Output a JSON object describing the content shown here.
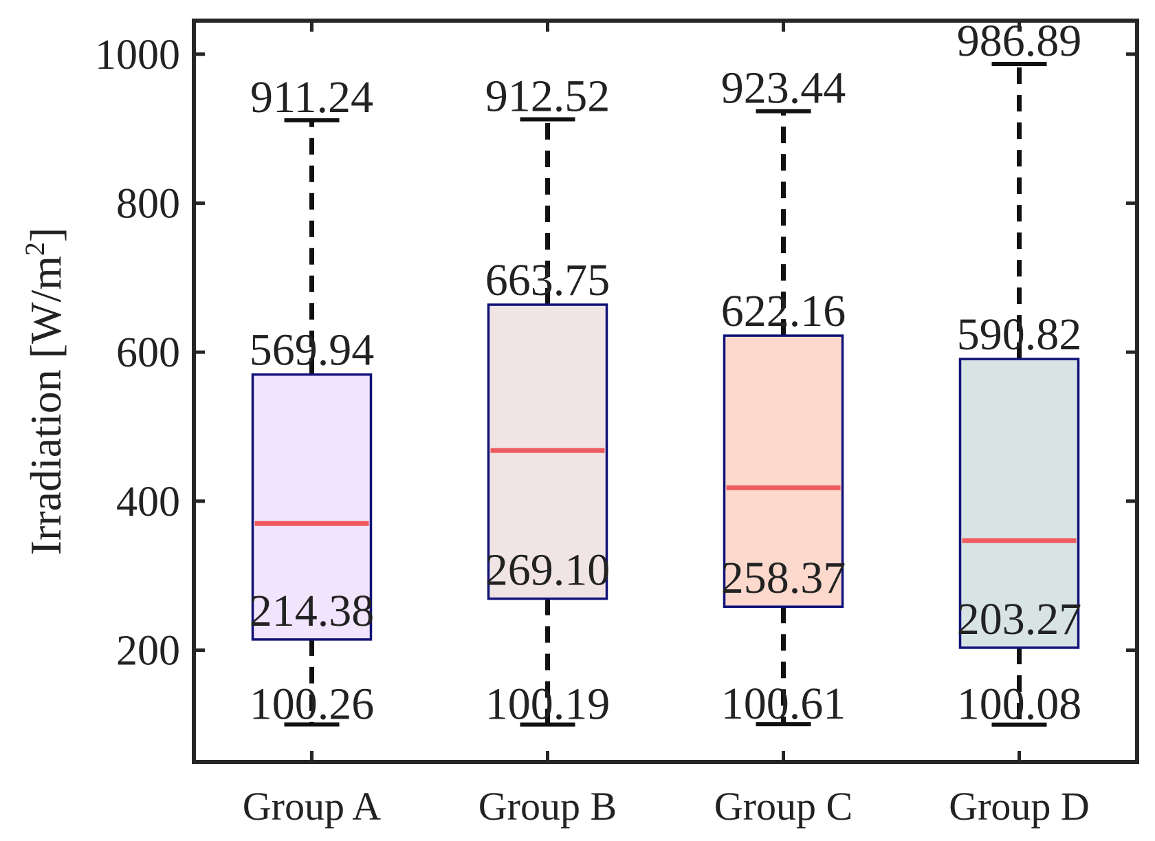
{
  "chart_data": {
    "type": "box",
    "title": "",
    "xlabel": "",
    "ylabel": {
      "text": "Irradiation [W/m",
      "superscript": "2",
      "suffix": "]"
    },
    "ylim": [
      50,
      1045
    ],
    "yticks": [
      200,
      400,
      600,
      800,
      1000
    ],
    "ytick_labels": [
      "200",
      "400",
      "600",
      "800",
      "1000"
    ],
    "grid": false,
    "categories": [
      "Group A",
      "Group B",
      "Group C",
      "Group D"
    ],
    "boxes": [
      {
        "name": "Group A",
        "min": 100.26,
        "q1": 214.38,
        "median": 370,
        "q3": 569.94,
        "max": 911.24,
        "labels": {
          "min": "100.26",
          "q1": "214.38",
          "q3": "569.94",
          "max": "911.24"
        },
        "fill": "#f1e4fd"
      },
      {
        "name": "Group B",
        "min": 100.19,
        "q1": 269.1,
        "median": 468,
        "q3": 663.75,
        "max": 912.52,
        "labels": {
          "min": "100.19",
          "q1": "269.10",
          "q3": "663.75",
          "max": "912.52"
        },
        "fill": "#f1e4e4"
      },
      {
        "name": "Group C",
        "min": 100.61,
        "q1": 258.37,
        "median": 418,
        "q3": 622.16,
        "max": 923.44,
        "labels": {
          "min": "100.61",
          "q1": "258.37",
          "q3": "622.16",
          "max": "923.44"
        },
        "fill": "#fdd9cd"
      },
      {
        "name": "Group D",
        "min": 100.08,
        "q1": 203.27,
        "median": 347,
        "q3": 590.82,
        "max": 986.89,
        "labels": {
          "min": "100.08",
          "q1": "203.27",
          "q3": "590.82",
          "max": "986.89"
        },
        "fill": "#d8e4e4"
      }
    ],
    "colors": {
      "box_edge": "#101278",
      "median": "#ee5a5e",
      "whisker": "#111111",
      "axis": "#262626"
    }
  }
}
